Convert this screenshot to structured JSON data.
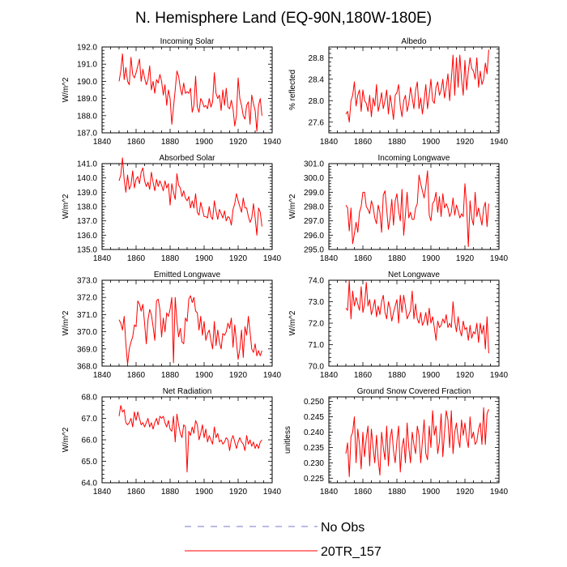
{
  "title": "N. Hemisphere Land (EQ-90N,180W-180E)",
  "legend": {
    "items": [
      {
        "label": "No Obs",
        "color": "#7777cc",
        "dash": "dashed"
      },
      {
        "label": "20TR_157",
        "color": "#ff0000",
        "dash": "solid"
      }
    ]
  },
  "chart_data": [
    {
      "type": "line",
      "title": "Incoming Solar",
      "ylabel": "W/m^2",
      "xlim": [
        1840,
        1940
      ],
      "ylim": [
        187.0,
        192.0
      ],
      "xticks": [
        1840,
        1860,
        1880,
        1900,
        1920,
        1940
      ],
      "yticks": [
        187.0,
        188.0,
        189.0,
        190.0,
        191.0,
        192.0
      ],
      "yfmt": 1,
      "series": [
        {
          "name": "20TR_157",
          "x0": 1850,
          "values": [
            190.0,
            190.6,
            191.6,
            190.1,
            190.8,
            190.0,
            189.8,
            191.4,
            190.4,
            190.2,
            190.5,
            190.9,
            191.3,
            190.0,
            190.7,
            190.2,
            189.8,
            190.1,
            190.9,
            189.5,
            190.0,
            189.3,
            190.1,
            189.9,
            190.4,
            190.0,
            189.2,
            189.8,
            188.6,
            189.5,
            189.0,
            187.5,
            188.5,
            189.5,
            190.6,
            190.3,
            189.6,
            189.2,
            189.9,
            189.3,
            189.4,
            189.3,
            189.6,
            188.2,
            188.6,
            190.3,
            188.5,
            188.2,
            189.0,
            188.8,
            188.5,
            188.6,
            188.4,
            189.0,
            188.5,
            188.8,
            190.5,
            189.3,
            189.0,
            189.2,
            188.3,
            189.5,
            188.6,
            189.6,
            188.5,
            188.4,
            188.9,
            188.4,
            187.4,
            188.0,
            190.2,
            189.0,
            188.6,
            188.0,
            187.8,
            188.6,
            188.8,
            187.5,
            189.2,
            188.7,
            188.3,
            187.1,
            188.6,
            189.0,
            188.0
          ]
        }
      ]
    },
    {
      "type": "line",
      "title": "Albedo",
      "ylabel": "% reflected",
      "xlim": [
        1840,
        1940
      ],
      "ylim": [
        27.4,
        29.0
      ],
      "xticks": [
        1840,
        1860,
        1880,
        1900,
        1920,
        1940
      ],
      "yticks": [
        27.6,
        28.0,
        28.4,
        28.8
      ],
      "yfmt": 1,
      "series": [
        {
          "name": "20TR_157",
          "x0": 1850,
          "values": [
            27.75,
            27.8,
            27.6,
            28.0,
            28.1,
            28.35,
            27.9,
            28.1,
            28.2,
            27.8,
            28.2,
            28.0,
            27.95,
            27.8,
            28.1,
            27.7,
            28.05,
            27.9,
            28.3,
            27.8,
            27.95,
            28.15,
            27.85,
            28.0,
            28.2,
            27.75,
            28.1,
            27.9,
            27.65,
            28.1,
            28.15,
            28.3,
            27.9,
            27.7,
            28.0,
            28.1,
            27.8,
            27.95,
            28.25,
            28.05,
            27.85,
            28.2,
            28.35,
            27.85,
            28.05,
            27.75,
            28.0,
            28.3,
            27.85,
            28.1,
            28.4,
            28.0,
            27.95,
            28.25,
            28.35,
            28.1,
            28.2,
            28.4,
            28.05,
            28.25,
            28.5,
            28.0,
            28.4,
            28.85,
            28.1,
            28.8,
            28.25,
            28.85,
            28.4,
            28.1,
            28.75,
            28.2,
            28.55,
            28.8,
            28.6,
            28.55,
            28.4,
            28.8,
            28.25,
            28.55,
            28.3,
            28.4,
            28.7,
            28.5,
            28.95
          ]
        }
      ]
    },
    {
      "type": "line",
      "title": "Absorbed Solar",
      "ylabel": "W/m^2",
      "xlim": [
        1840,
        1940
      ],
      "ylim": [
        135.0,
        141.0
      ],
      "xticks": [
        1840,
        1860,
        1880,
        1900,
        1920,
        1940
      ],
      "yticks": [
        135.0,
        136.0,
        137.0,
        138.0,
        139.0,
        140.0,
        141.0
      ],
      "yfmt": 1,
      "series": [
        {
          "name": "20TR_157",
          "x0": 1850,
          "values": [
            139.8,
            140.2,
            141.4,
            139.9,
            139.0,
            140.2,
            139.2,
            139.5,
            140.5,
            139.3,
            139.9,
            140.1,
            139.6,
            140.4,
            140.7,
            139.8,
            139.4,
            139.7,
            139.2,
            140.4,
            139.7,
            139.1,
            139.9,
            139.4,
            139.8,
            139.5,
            139.1,
            139.8,
            139.3,
            139.6,
            138.1,
            139.6,
            139.0,
            138.5,
            140.3,
            139.5,
            139.3,
            138.7,
            139.1,
            138.6,
            138.4,
            138.7,
            137.9,
            138.4,
            137.9,
            138.9,
            137.6,
            137.4,
            138.3,
            137.8,
            137.3,
            137.3,
            137.2,
            138.0,
            137.3,
            137.1,
            138.4,
            137.7,
            137.1,
            137.8,
            137.5,
            137.2,
            137.7,
            137.0,
            137.3,
            137.2,
            136.7,
            137.8,
            138.2,
            138.9,
            138.4,
            138.0,
            137.6,
            138.6,
            137.9,
            137.9,
            137.3,
            136.9,
            137.2,
            138.2,
            137.2,
            136.0,
            137.9,
            137.6,
            136.6
          ]
        }
      ]
    },
    {
      "type": "line",
      "title": "Incoming Longwave",
      "ylabel": "W/m^2",
      "xlim": [
        1840,
        1940
      ],
      "ylim": [
        295.0,
        301.0
      ],
      "xticks": [
        1840,
        1860,
        1880,
        1900,
        1920,
        1940
      ],
      "yticks": [
        295.0,
        296.0,
        297.0,
        298.0,
        299.0,
        300.0,
        301.0
      ],
      "yfmt": 1,
      "series": [
        {
          "name": "20TR_157",
          "x0": 1850,
          "values": [
            298.1,
            297.9,
            296.3,
            297.9,
            295.4,
            296.1,
            296.9,
            296.2,
            297.6,
            298.0,
            299.0,
            299.0,
            298.0,
            297.8,
            297.5,
            298.4,
            298.0,
            297.2,
            296.8,
            298.1,
            297.6,
            296.2,
            298.8,
            299.1,
            297.8,
            296.4,
            297.2,
            298.5,
            296.7,
            298.4,
            298.9,
            297.7,
            297.0,
            299.2,
            296.0,
            297.4,
            299.0,
            297.2,
            297.6,
            297.1,
            297.1,
            297.9,
            298.2,
            300.2,
            299.6,
            299.1,
            298.6,
            299.4,
            300.5,
            297.4,
            297.0,
            298.2,
            298.4,
            299.0,
            297.6,
            298.7,
            297.3,
            298.9,
            297.9,
            298.2,
            297.9,
            297.3,
            297.6,
            298.6,
            297.4,
            298.1,
            297.7,
            297.2,
            297.5,
            297.3,
            299.6,
            298.0,
            295.2,
            298.4,
            297.2,
            296.7,
            299.0,
            297.3,
            297.9,
            297.3,
            296.7,
            297.9,
            298.3,
            296.6,
            298.2
          ]
        }
      ]
    },
    {
      "type": "line",
      "title": "Emitted Longwave",
      "ylabel": "W/m^2",
      "xlim": [
        1840,
        1940
      ],
      "ylim": [
        368.0,
        373.0
      ],
      "xticks": [
        1840,
        1860,
        1880,
        1900,
        1920,
        1940
      ],
      "yticks": [
        368.0,
        369.0,
        370.0,
        371.0,
        372.0,
        373.0
      ],
      "yfmt": 1,
      "series": [
        {
          "name": "20TR_157",
          "x0": 1850,
          "values": [
            370.7,
            370.5,
            370.1,
            370.9,
            369.3,
            368.1,
            369.0,
            369.4,
            369.7,
            370.4,
            370.3,
            371.8,
            371.6,
            371.2,
            371.6,
            370.5,
            369.3,
            370.7,
            371.3,
            371.0,
            370.3,
            369.5,
            371.8,
            371.9,
            371.3,
            369.7,
            370.8,
            370.0,
            371.1,
            370.9,
            371.3,
            372.0,
            368.2,
            372.0,
            370.6,
            369.7,
            370.2,
            369.4,
            369.3,
            370.8,
            370.6,
            371.9,
            372.1,
            371.7,
            372.0,
            371.2,
            371.1,
            370.1,
            370.9,
            369.8,
            370.6,
            369.5,
            369.9,
            370.1,
            369.5,
            369.0,
            370.6,
            369.2,
            370.1,
            369.4,
            369.0,
            369.9,
            369.8,
            370.0,
            370.5,
            370.2,
            370.8,
            369.1,
            370.4,
            369.4,
            368.4,
            369.0,
            370.1,
            368.5,
            370.3,
            369.8,
            370.9,
            370.0,
            369.0,
            368.8,
            369.3,
            368.6,
            368.9,
            368.6,
            368.9
          ]
        }
      ]
    },
    {
      "type": "line",
      "title": "Net Longwave",
      "ylabel": "W/m^2",
      "xlim": [
        1840,
        1940
      ],
      "ylim": [
        70.0,
        74.0
      ],
      "xticks": [
        1840,
        1860,
        1880,
        1900,
        1920,
        1940
      ],
      "yticks": [
        70.0,
        71.0,
        72.0,
        73.0,
        74.0
      ],
      "yfmt": 1,
      "series": [
        {
          "name": "20TR_157",
          "x0": 1850,
          "values": [
            72.7,
            72.6,
            74.0,
            72.2,
            73.5,
            72.8,
            73.2,
            72.9,
            72.6,
            73.7,
            72.5,
            72.9,
            73.9,
            72.8,
            73.1,
            72.4,
            72.7,
            73.1,
            72.3,
            72.8,
            72.4,
            73.0,
            73.3,
            72.5,
            72.2,
            73.0,
            72.7,
            72.1,
            72.5,
            72.8,
            73.1,
            72.0,
            73.3,
            72.5,
            73.3,
            72.8,
            72.2,
            72.4,
            72.6,
            73.5,
            72.2,
            72.9,
            72.2,
            72.0,
            72.5,
            71.9,
            72.1,
            72.5,
            71.9,
            72.7,
            72.0,
            72.3,
            71.8,
            71.2,
            72.1,
            71.8,
            71.9,
            72.2,
            72.0,
            72.4,
            71.8,
            72.0,
            71.8,
            73.0,
            72.1,
            71.6,
            72.3,
            71.7,
            71.4,
            72.1,
            71.7,
            71.8,
            71.2,
            71.9,
            71.3,
            71.6,
            71.5,
            72.0,
            71.1,
            72.0,
            71.5,
            71.9,
            70.8,
            72.3,
            70.6
          ]
        }
      ]
    },
    {
      "type": "line",
      "title": "Net Radiation",
      "ylabel": "W/m^2",
      "xlim": [
        1840,
        1940
      ],
      "ylim": [
        64.0,
        68.0
      ],
      "xticks": [
        1840,
        1860,
        1880,
        1900,
        1920,
        1940
      ],
      "yticks": [
        64.0,
        65.0,
        66.0,
        67.0,
        68.0
      ],
      "yfmt": 1,
      "series": [
        {
          "name": "20TR_157",
          "x0": 1850,
          "values": [
            67.1,
            67.6,
            67.3,
            67.4,
            66.8,
            66.7,
            66.8,
            67.0,
            66.6,
            67.3,
            66.9,
            67.3,
            67.0,
            66.7,
            66.8,
            66.6,
            66.8,
            67.0,
            66.6,
            66.8,
            66.5,
            66.8,
            67.0,
            66.7,
            67.1,
            67.0,
            67.1,
            66.8,
            66.6,
            66.9,
            66.5,
            66.4,
            67.1,
            65.9,
            67.2,
            66.7,
            66.3,
            66.1,
            66.7,
            66.6,
            64.5,
            66.4,
            66.2,
            66.6,
            66.3,
            66.9,
            66.7,
            66.0,
            66.3,
            66.7,
            66.1,
            66.5,
            65.9,
            66.2,
            66.0,
            65.8,
            66.6,
            66.1,
            66.3,
            65.9,
            66.0,
            65.8,
            65.9,
            66.1,
            66.0,
            65.5,
            66.0,
            66.2,
            65.9,
            65.6,
            65.9,
            66.1,
            65.9,
            65.8,
            65.5,
            66.2,
            65.8,
            66.0,
            65.7,
            65.9,
            65.6,
            65.8,
            65.6,
            65.9,
            66.0
          ]
        }
      ]
    },
    {
      "type": "line",
      "title": "Ground Snow Covered Fraction",
      "ylabel": "unitless",
      "xlim": [
        1840,
        1940
      ],
      "ylim": [
        0.2235,
        0.2515
      ],
      "xticks": [
        1840,
        1860,
        1880,
        1900,
        1920,
        1940
      ],
      "yticks": [
        0.225,
        0.23,
        0.235,
        0.24,
        0.245,
        0.25
      ],
      "yfmt": 3,
      "series": [
        {
          "name": "20TR_157",
          "x0": 1850,
          "values": [
            0.233,
            0.2365,
            0.2255,
            0.2385,
            0.24,
            0.245,
            0.23,
            0.241,
            0.236,
            0.228,
            0.24,
            0.232,
            0.238,
            0.242,
            0.229,
            0.241,
            0.235,
            0.23,
            0.239,
            0.231,
            0.226,
            0.24,
            0.235,
            0.231,
            0.242,
            0.229,
            0.238,
            0.241,
            0.234,
            0.23,
            0.237,
            0.242,
            0.227,
            0.235,
            0.238,
            0.23,
            0.243,
            0.235,
            0.23,
            0.24,
            0.236,
            0.233,
            0.242,
            0.239,
            0.23,
            0.237,
            0.244,
            0.233,
            0.231,
            0.242,
            0.235,
            0.247,
            0.239,
            0.242,
            0.233,
            0.237,
            0.246,
            0.232,
            0.24,
            0.247,
            0.244,
            0.235,
            0.247,
            0.233,
            0.24,
            0.243,
            0.238,
            0.235,
            0.244,
            0.239,
            0.243,
            0.238,
            0.235,
            0.245,
            0.238,
            0.24,
            0.236,
            0.237,
            0.241,
            0.243,
            0.236,
            0.248,
            0.236,
            0.246,
            0.2475
          ]
        }
      ]
    }
  ]
}
